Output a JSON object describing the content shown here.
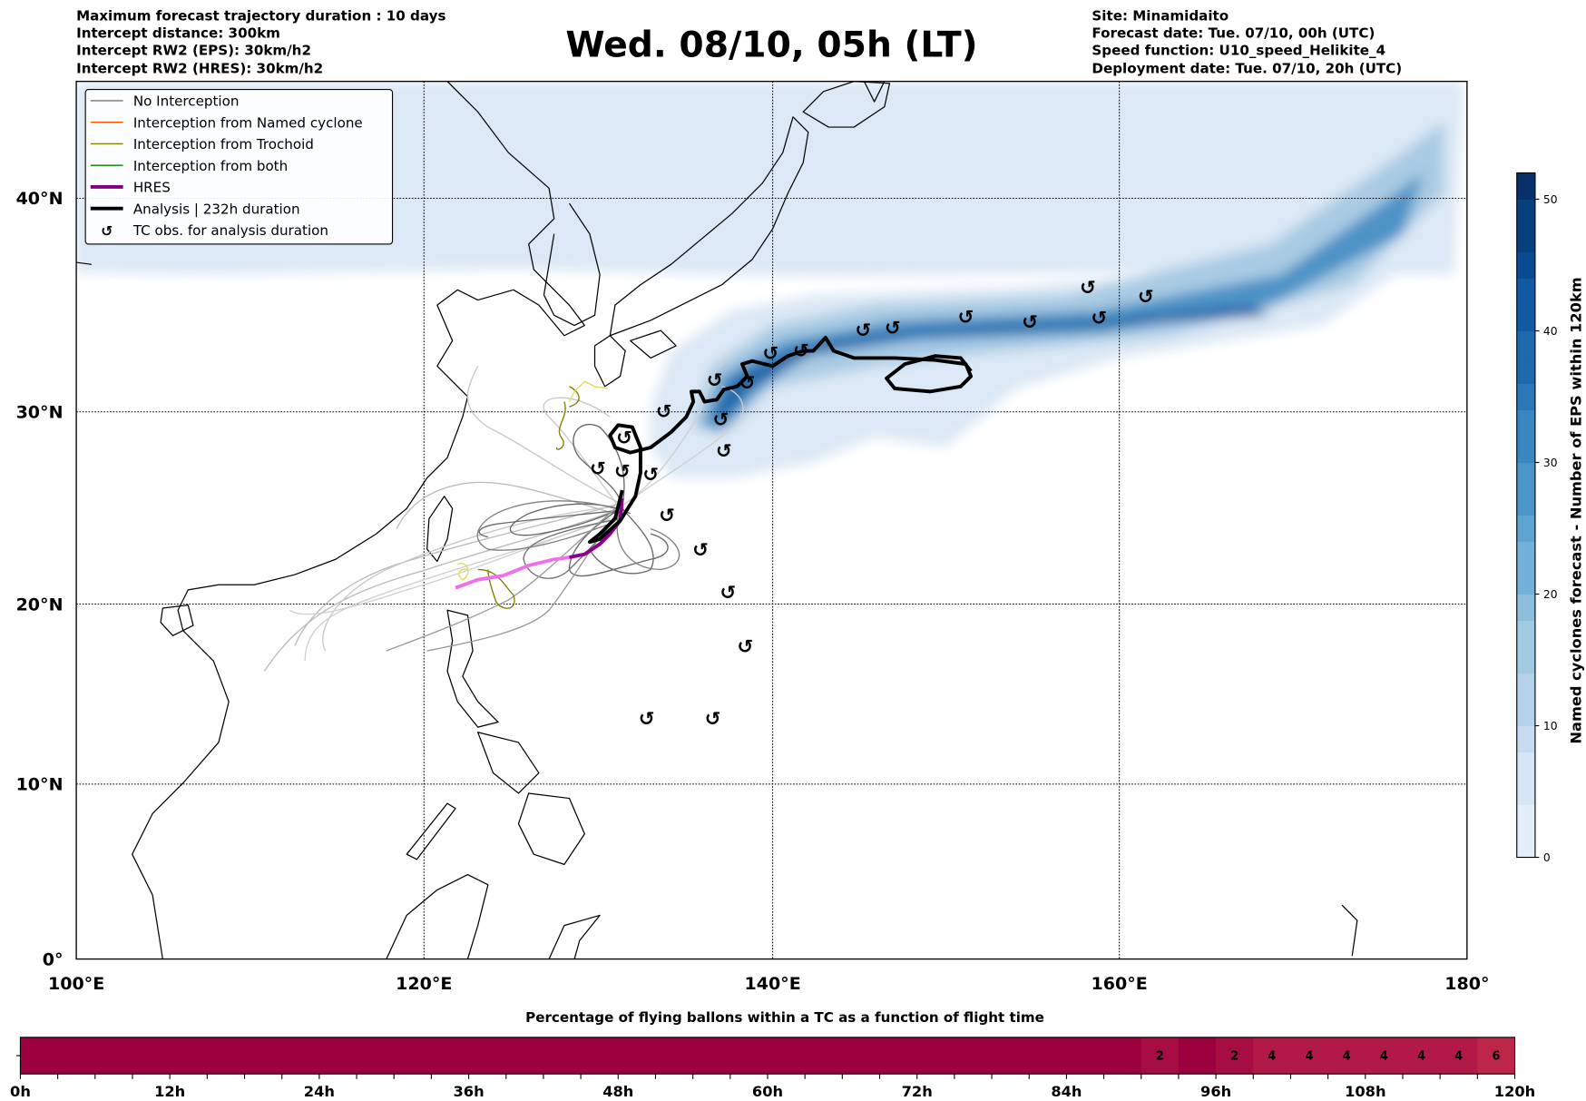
{
  "header": {
    "left": [
      "Maximum forecast trajectory duration : 10 days",
      "Intercept distance: 300km",
      "Intercept RW2 (EPS):  30km/h2",
      "Intercept RW2 (HRES): 30km/h2"
    ],
    "title": "Wed. 08/10, 05h (LT)",
    "right": [
      "Site: Minamidaito",
      "Forecast date: Tue. 07/10, 00h (UTC)",
      "Speed function: U10_speed_Helikite_4",
      "Deployment date: Tue. 07/10, 20h (UTC)"
    ]
  },
  "map": {
    "lat_labels": [
      "40°N",
      "30°N",
      "20°N",
      "10°N",
      "0°"
    ],
    "lon_labels": [
      "100°E",
      "120°E",
      "140°E",
      "160°E",
      "180°"
    ],
    "tc_symbol": "↺"
  },
  "legend": {
    "items": [
      {
        "label": "No Interception",
        "color": "#777777"
      },
      {
        "label": "Interception from Named cyclone",
        "color": "#ff5500"
      },
      {
        "label": "Interception from Trochoid",
        "color": "#808000"
      },
      {
        "label": "Interception from both",
        "color": "#008000"
      },
      {
        "label": "HRES",
        "color": "#800080"
      },
      {
        "label": "Analysis | 232h duration",
        "color": "#000000"
      },
      {
        "label": "TC obs. for analysis duration",
        "color": "#000000"
      }
    ]
  },
  "colorbar": {
    "label": "Named cyclones forecast - Number of EPS within 120km",
    "ticks": [
      "0",
      "10",
      "20",
      "30",
      "40",
      "50"
    ],
    "range": [
      0,
      52
    ]
  },
  "timebar": {
    "title": "Percentage of flying ballons within a TC as a function of flight time",
    "tick_labels": [
      "0h",
      "12h",
      "24h",
      "36h",
      "48h",
      "60h",
      "72h",
      "84h",
      "96h",
      "108h",
      "120h"
    ],
    "cells": [
      {
        "start_h": 0,
        "end_h": 90,
        "value": 0,
        "label": ""
      },
      {
        "start_h": 90,
        "end_h": 93,
        "value": 2,
        "label": "2"
      },
      {
        "start_h": 93,
        "end_h": 96,
        "value": 0,
        "label": ""
      },
      {
        "start_h": 96,
        "end_h": 99,
        "value": 2,
        "label": "2"
      },
      {
        "start_h": 99,
        "end_h": 102,
        "value": 4,
        "label": "4"
      },
      {
        "start_h": 102,
        "end_h": 105,
        "value": 4,
        "label": "4"
      },
      {
        "start_h": 105,
        "end_h": 108,
        "value": 4,
        "label": "4"
      },
      {
        "start_h": 108,
        "end_h": 111,
        "value": 4,
        "label": "4"
      },
      {
        "start_h": 111,
        "end_h": 114,
        "value": 4,
        "label": "4"
      },
      {
        "start_h": 114,
        "end_h": 117,
        "value": 4,
        "label": "4"
      },
      {
        "start_h": 117,
        "end_h": 120,
        "value": 6,
        "label": "6"
      }
    ],
    "colors": {
      "0": "#9c003e",
      "2": "#a60e43",
      "4": "#b11a46",
      "6": "#bd2549"
    }
  }
}
